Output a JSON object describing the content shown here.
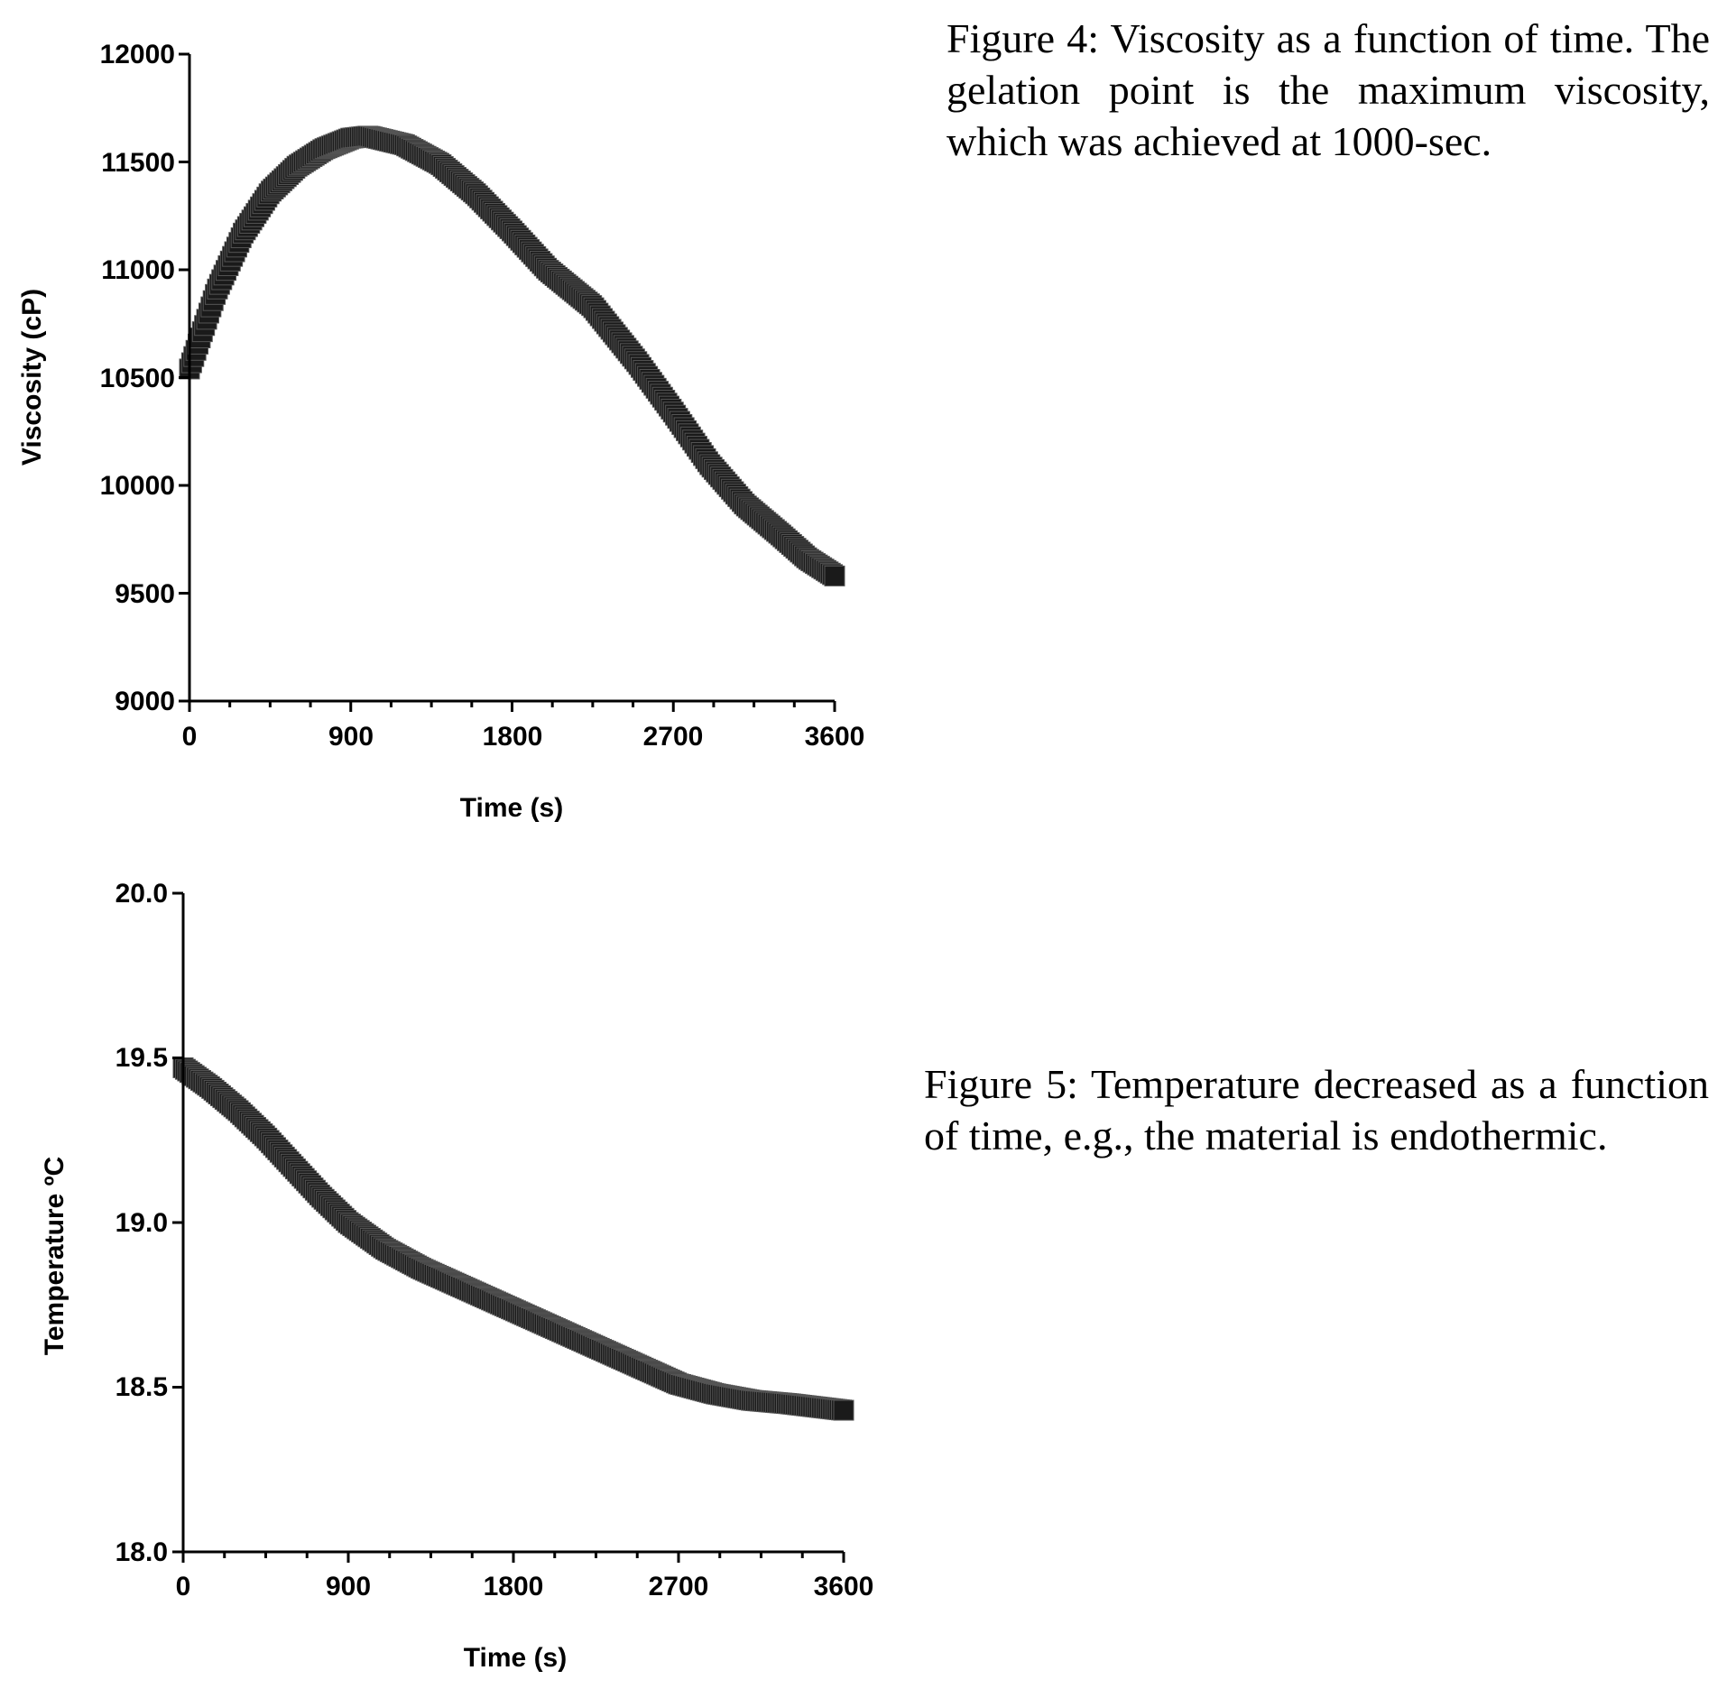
{
  "captions": {
    "fig4": "Figure 4: Viscosity as a function of time. The gelation point is the maximum viscosity, which was achieved at 1000-sec.",
    "fig5": "Figure 5: Temperature decreased as a function of time, e.g., the material is endothermic."
  },
  "chart_data": [
    {
      "type": "scatter",
      "title": "",
      "xlabel": "Time (s)",
      "ylabel": "Viscosity (cP)",
      "xlim": [
        0,
        3600
      ],
      "ylim": [
        9000,
        12000
      ],
      "xticks": [
        0,
        900,
        1800,
        2700,
        3600
      ],
      "yticks": [
        9000,
        9500,
        10000,
        10500,
        11000,
        11500,
        12000
      ],
      "xtick_labels": [
        "0",
        "900",
        "1800",
        "2700",
        "3600"
      ],
      "ytick_labels": [
        "9000",
        "9500",
        "10000",
        "10500",
        "11000",
        "11500",
        "12000"
      ],
      "grid": false,
      "marker_color": "#1a1a1a",
      "series": [
        {
          "x": [
            0,
            150,
            300,
            450,
            600,
            750,
            900,
            1000,
            1200,
            1400,
            1600,
            1800,
            2000,
            2250,
            2500,
            2700,
            2900,
            3100,
            3300,
            3450,
            3600
          ],
          "y": [
            10540,
            10900,
            11170,
            11360,
            11480,
            11560,
            11610,
            11620,
            11580,
            11490,
            11350,
            11180,
            11000,
            10830,
            10570,
            10340,
            10100,
            9910,
            9770,
            9660,
            9580
          ]
        }
      ]
    },
    {
      "type": "scatter",
      "title": "",
      "xlabel": "Time (s)",
      "ylabel": "Temperature ºC",
      "xlim": [
        0,
        3600
      ],
      "ylim": [
        18.0,
        20.0
      ],
      "xticks": [
        0,
        900,
        1800,
        2700,
        3600
      ],
      "yticks": [
        18.0,
        18.5,
        19.0,
        19.5,
        20.0
      ],
      "xtick_labels": [
        "0",
        "900",
        "1800",
        "2700",
        "3600"
      ],
      "ytick_labels": [
        "18.0",
        "18.5",
        "19.0",
        "19.5",
        "20.0"
      ],
      "grid": false,
      "marker_color": "#1a1a1a",
      "series": [
        {
          "x": [
            0,
            150,
            300,
            450,
            600,
            750,
            900,
            1100,
            1300,
            1500,
            1700,
            1900,
            2100,
            2300,
            2500,
            2700,
            2900,
            3100,
            3300,
            3450,
            3600
          ],
          "y": [
            19.47,
            19.41,
            19.34,
            19.26,
            19.17,
            19.08,
            19.0,
            18.92,
            18.86,
            18.81,
            18.76,
            18.71,
            18.66,
            18.61,
            18.56,
            18.51,
            18.48,
            18.46,
            18.45,
            18.44,
            18.43
          ]
        }
      ]
    }
  ]
}
